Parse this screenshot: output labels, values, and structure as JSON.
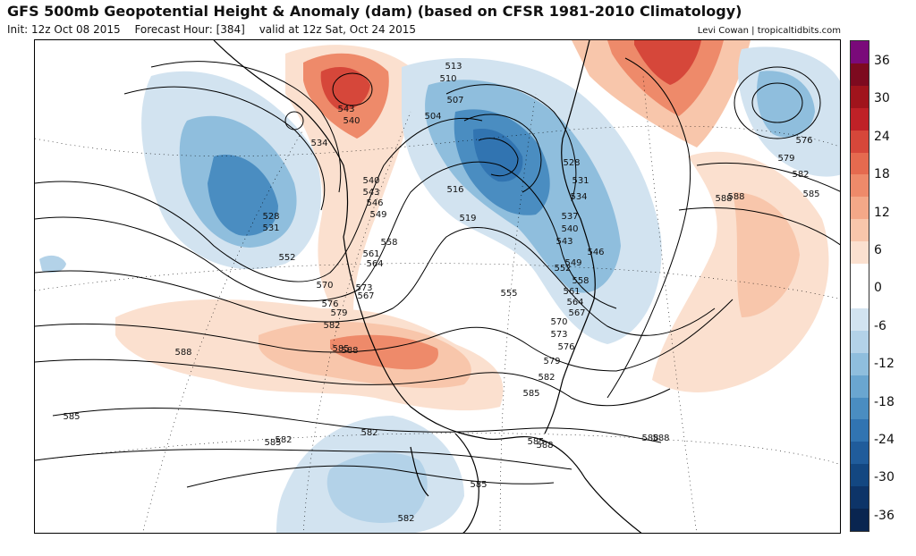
{
  "header": {
    "title": "GFS 500mb Geopotential Height & Anomaly (dam) (based on CFSR 1981-2010 Climatology)",
    "init": "Init: 12z Oct 08 2015",
    "forecast_hour": "Forecast Hour: [384]",
    "valid": "valid at 12z Sat, Oct 24 2015",
    "credit": "Levi Cowan | tropicaltidbits.com"
  },
  "colorbar": {
    "ticks": [
      "36",
      "30",
      "24",
      "18",
      "12",
      "6",
      "0",
      "-6",
      "-12",
      "-18",
      "-24",
      "-30",
      "-36"
    ],
    "colors": [
      "#7a0a7a",
      "#7d0a1f",
      "#a0141c",
      "#bf2127",
      "#d6473a",
      "#e56a4f",
      "#ee8a6a",
      "#f4a888",
      "#f8c6ab",
      "#fbe0cf",
      "#ffffff",
      "#ffffff",
      "#d2e3f0",
      "#b3d2e8",
      "#8fbedd",
      "#6aa6d0",
      "#4a8dc1",
      "#3174b1",
      "#205c9b",
      "#134781",
      "#0d3468",
      "#092550"
    ]
  },
  "contour_labels": [
    "513",
    "510",
    "507",
    "504",
    "516",
    "519",
    "528",
    "531",
    "534",
    "537",
    "540",
    "543",
    "546",
    "549",
    "552",
    "555",
    "558",
    "561",
    "564",
    "567",
    "570",
    "573",
    "576",
    "579",
    "582",
    "585",
    "588",
    "534",
    "543",
    "540",
    "540",
    "543",
    "546",
    "549",
    "528",
    "531",
    "552",
    "558",
    "561",
    "564",
    "567",
    "570",
    "573",
    "576",
    "579",
    "582",
    "585",
    "588",
    "588",
    "588",
    "585",
    "585",
    "582",
    "585",
    "588",
    "588",
    "585",
    "582",
    "576",
    "579",
    "582",
    "585",
    "588",
    "582"
  ]
}
